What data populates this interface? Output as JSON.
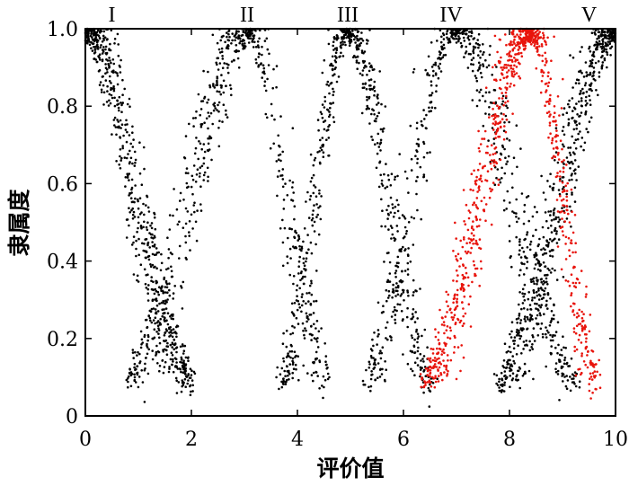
{
  "chart_data": {
    "type": "scatter",
    "xlabel": "评价值",
    "ylabel": "隶属度",
    "xlim": [
      0,
      10
    ],
    "ylim": [
      0,
      1
    ],
    "xticks": [
      "0",
      "2",
      "4",
      "6",
      "8",
      "10"
    ],
    "yticks": [
      "0",
      "0.2",
      "0.4",
      "0.6",
      "0.8",
      "1.0"
    ],
    "grid": false,
    "legend": "none",
    "cluster_labels": [
      {
        "text": "I",
        "x": 0.5
      },
      {
        "text": "II",
        "x": 3.05
      },
      {
        "text": "III",
        "x": 4.95
      },
      {
        "text": "IV",
        "x": 6.9
      },
      {
        "text": "V",
        "x": 9.5
      }
    ],
    "series": [
      {
        "color": "#000000",
        "points_per_peak": 620,
        "peaks": [
          {
            "center": 0.0,
            "width_left": 0.0,
            "width_right": 1.9
          },
          {
            "center": 3.1,
            "width_left": 2.2,
            "width_right": 1.4
          },
          {
            "center": 4.95,
            "width_left": 1.2,
            "width_right": 1.5
          },
          {
            "center": 6.95,
            "width_left": 1.6,
            "width_right": 2.2
          },
          {
            "center": 10.0,
            "width_left": 2.1,
            "width_right": 0.0
          }
        ]
      },
      {
        "color": "#e8140c",
        "points_per_peak": 900,
        "peaks": [
          {
            "center": 8.4,
            "width_left": 1.9,
            "width_right": 1.2
          }
        ]
      }
    ]
  }
}
